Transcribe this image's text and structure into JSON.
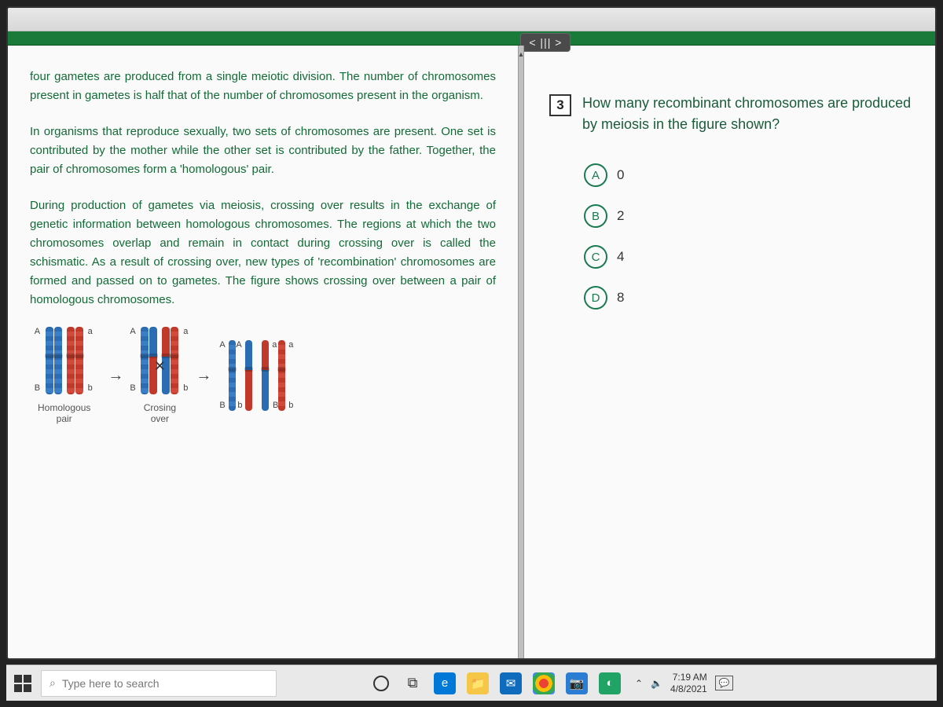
{
  "colors": {
    "brand_green": "#126b36",
    "title_bar": "#1a7a3a",
    "option_border": "#1a7a4f",
    "blue_chrom": "#2b6cb3",
    "red_chrom": "#c0392b",
    "taskbar_bg": "#e9e9e9",
    "page_bg": "#fafafa"
  },
  "nav_chip": "< ||| >",
  "passage": {
    "p1": "four gametes are produced from a single meiotic division. The number of chromosomes present in gametes is half that of the number of chromosomes present in the organism.",
    "p2": "In organisms that reproduce sexually, two sets of chromosomes are present. One set is contributed by the mother while the other set is contributed by the father. Together, the pair of chromosomes form a 'homologous' pair.",
    "p3": "During production of gametes via meiosis, crossing over results in the exchange of genetic information between homologous chromosomes. The regions at which the two chromosomes overlap and remain in contact during crossing over is called the schismatic. As a result of crossing over, new types of 'recombination' chromosomes are formed and passed on to gametes. The figure shows crossing over between a pair of homologous chromosomes."
  },
  "figure": {
    "stage1": "Homologous\npair",
    "stage2": "Crosing\nover",
    "labels": {
      "A": "A",
      "a": "a",
      "B": "B",
      "b": "b"
    }
  },
  "question": {
    "number": "3",
    "text": "How many recombinant chromosomes are produced by meiosis in the figure shown?",
    "options": [
      {
        "letter": "A",
        "value": "0"
      },
      {
        "letter": "B",
        "value": "2"
      },
      {
        "letter": "C",
        "value": "4"
      },
      {
        "letter": "D",
        "value": "8"
      }
    ]
  },
  "taskbar": {
    "search_placeholder": "Type here to search",
    "time": "7:19 AM",
    "date": "4/8/2021"
  }
}
